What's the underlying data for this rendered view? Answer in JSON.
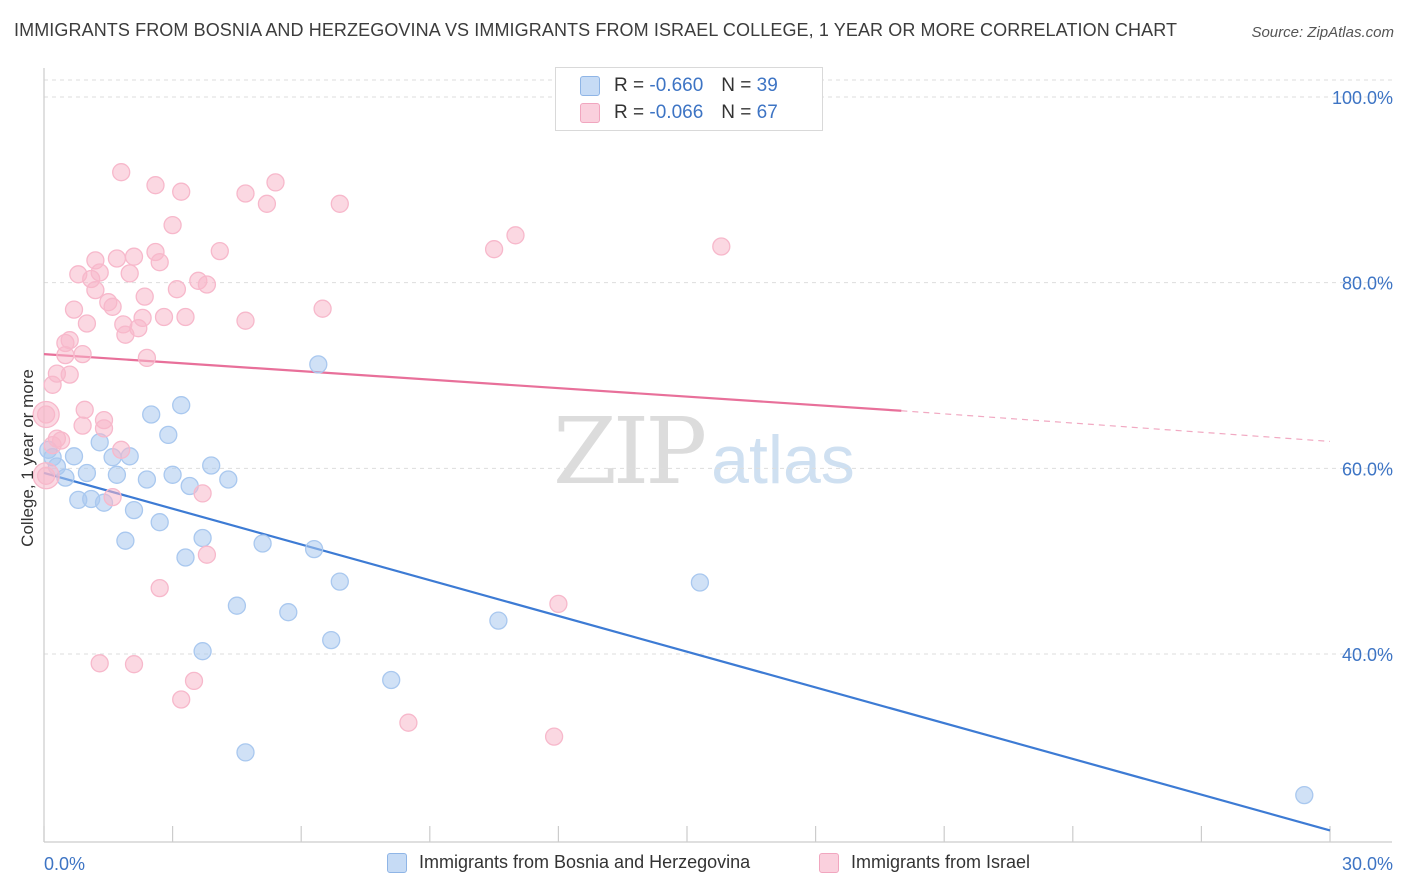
{
  "header": {
    "title": "IMMIGRANTS FROM BOSNIA AND HERZEGOVINA VS IMMIGRANTS FROM ISRAEL COLLEGE, 1 YEAR OR MORE CORRELATION CHART",
    "source": "Source: ZipAtlas.com"
  },
  "watermark": {
    "zip": "ZIP",
    "atlas": "atlas"
  },
  "legend": {
    "r_label": "R =",
    "n_label": "N =",
    "rows": [
      {
        "r": "-0.660",
        "n": "39",
        "color": "#a9c8ef"
      },
      {
        "r": "-0.066",
        "n": "67",
        "color": "#f7b8cb"
      }
    ]
  },
  "bottom_legend": {
    "series1": "Immigrants from Bosnia and Herzegovina",
    "series2": "Immigrants from Israel"
  },
  "chart_data": {
    "type": "scatter",
    "title": "IMMIGRANTS FROM BOSNIA AND HERZEGOVINA VS IMMIGRANTS FROM ISRAEL COLLEGE, 1 YEAR OR MORE CORRELATION CHART",
    "xlabel": "",
    "ylabel": "College, 1 year or more",
    "xlim": [
      0,
      30
    ],
    "ylim": [
      20,
      102
    ],
    "x_ticks": [
      "0.0%",
      "30.0%"
    ],
    "y_ticks": [
      "40.0%",
      "60.0%",
      "80.0%",
      "100.0%"
    ],
    "y_tick_values": [
      40,
      60,
      80,
      100
    ],
    "grid": true,
    "legend_position": "top-center",
    "series": [
      {
        "name": "Immigrants from Bosnia and Herzegovina",
        "color": "#3d7bd4",
        "fill": "#a9c8ef",
        "trend": {
          "x": [
            0,
            30
          ],
          "y": [
            59.5,
            21.0
          ],
          "dashed_from": null
        },
        "points": [
          [
            0.1,
            62.0
          ],
          [
            0.2,
            61.2
          ],
          [
            0.3,
            60.2
          ],
          [
            0.5,
            59.0
          ],
          [
            0.7,
            61.3
          ],
          [
            0.8,
            56.6
          ],
          [
            1.0,
            59.5
          ],
          [
            1.1,
            56.7
          ],
          [
            1.4,
            56.3
          ],
          [
            1.3,
            62.8
          ],
          [
            1.6,
            61.2
          ],
          [
            1.7,
            59.3
          ],
          [
            1.9,
            52.2
          ],
          [
            2.0,
            61.3
          ],
          [
            2.1,
            55.5
          ],
          [
            2.4,
            58.8
          ],
          [
            2.5,
            65.8
          ],
          [
            2.7,
            54.2
          ],
          [
            2.9,
            63.6
          ],
          [
            3.0,
            59.3
          ],
          [
            3.2,
            66.8
          ],
          [
            3.3,
            50.4
          ],
          [
            3.4,
            58.1
          ],
          [
            3.7,
            40.3
          ],
          [
            3.7,
            52.5
          ],
          [
            3.9,
            60.3
          ],
          [
            4.3,
            58.8
          ],
          [
            4.5,
            45.2
          ],
          [
            4.7,
            29.4
          ],
          [
            5.1,
            51.9
          ],
          [
            5.7,
            44.5
          ],
          [
            6.3,
            51.3
          ],
          [
            6.4,
            71.2
          ],
          [
            6.7,
            41.5
          ],
          [
            6.9,
            47.8
          ],
          [
            8.1,
            37.2
          ],
          [
            10.6,
            43.6
          ],
          [
            15.3,
            47.7
          ],
          [
            29.4,
            24.8
          ]
        ]
      },
      {
        "name": "Immigrants from Israel",
        "color": "#e8709a",
        "fill": "#f7b8cb",
        "trend": {
          "x": [
            0,
            20
          ],
          "y": [
            72.3,
            66.2
          ],
          "dashed_to": [
            30,
            62.9
          ]
        },
        "points": [
          [
            0.05,
            65.8
          ],
          [
            0.05,
            59.2
          ],
          [
            0.2,
            62.5
          ],
          [
            0.2,
            69.0
          ],
          [
            0.3,
            63.2
          ],
          [
            0.3,
            70.2
          ],
          [
            0.5,
            73.5
          ],
          [
            0.5,
            72.2
          ],
          [
            0.6,
            70.1
          ],
          [
            0.6,
            73.8
          ],
          [
            0.7,
            77.1
          ],
          [
            0.8,
            80.9
          ],
          [
            0.9,
            72.3
          ],
          [
            0.9,
            64.6
          ],
          [
            0.95,
            66.3
          ],
          [
            1.0,
            75.6
          ],
          [
            1.1,
            80.4
          ],
          [
            1.2,
            79.2
          ],
          [
            1.2,
            82.4
          ],
          [
            1.3,
            39.0
          ],
          [
            1.3,
            81.1
          ],
          [
            1.4,
            65.2
          ],
          [
            1.4,
            64.3
          ],
          [
            1.5,
            77.9
          ],
          [
            1.6,
            56.9
          ],
          [
            1.6,
            77.4
          ],
          [
            1.7,
            82.6
          ],
          [
            1.8,
            91.9
          ],
          [
            1.8,
            62.0
          ],
          [
            1.85,
            75.5
          ],
          [
            1.9,
            74.4
          ],
          [
            2.0,
            81.0
          ],
          [
            2.1,
            82.8
          ],
          [
            2.1,
            38.9
          ],
          [
            2.2,
            75.1
          ],
          [
            2.3,
            76.2
          ],
          [
            2.35,
            78.5
          ],
          [
            2.4,
            71.9
          ],
          [
            2.6,
            83.3
          ],
          [
            2.6,
            90.5
          ],
          [
            2.7,
            47.1
          ],
          [
            2.7,
            82.2
          ],
          [
            2.8,
            76.3
          ],
          [
            3.0,
            86.2
          ],
          [
            3.1,
            79.3
          ],
          [
            3.2,
            35.1
          ],
          [
            3.2,
            89.8
          ],
          [
            3.3,
            76.3
          ],
          [
            3.5,
            37.1
          ],
          [
            3.6,
            80.2
          ],
          [
            3.7,
            57.3
          ],
          [
            3.8,
            50.7
          ],
          [
            3.8,
            79.8
          ],
          [
            4.1,
            83.4
          ],
          [
            4.7,
            89.6
          ],
          [
            4.7,
            75.9
          ],
          [
            5.2,
            88.5
          ],
          [
            5.4,
            90.8
          ],
          [
            6.5,
            77.2
          ],
          [
            6.9,
            88.5
          ],
          [
            8.5,
            32.6
          ],
          [
            10.5,
            83.6
          ],
          [
            11.0,
            85.1
          ],
          [
            11.9,
            31.1
          ],
          [
            12.0,
            45.4
          ],
          [
            15.8,
            83.9
          ],
          [
            0.4,
            63.0
          ]
        ]
      }
    ]
  }
}
